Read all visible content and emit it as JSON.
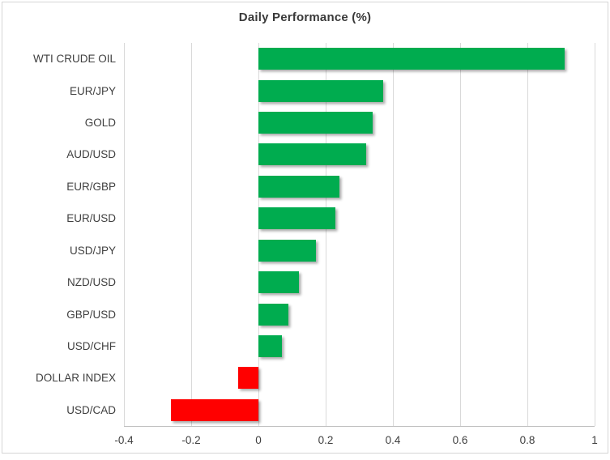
{
  "chart_data": {
    "type": "bar",
    "orientation": "horizontal",
    "title": "Daily Performance (%)",
    "categories": [
      "WTI CRUDE OIL",
      "EUR/JPY",
      "GOLD",
      "AUD/USD",
      "EUR/GBP",
      "EUR/USD",
      "USD/JPY",
      "NZD/USD",
      "GBP/USD",
      "USD/CHF",
      "DOLLAR INDEX",
      "USD/CAD"
    ],
    "values": [
      0.91,
      0.37,
      0.34,
      0.32,
      0.24,
      0.23,
      0.17,
      0.12,
      0.09,
      0.07,
      -0.06,
      -0.26
    ],
    "xlabel": "",
    "ylabel": "",
    "xlim": [
      -0.4,
      1.0
    ],
    "x_ticks": [
      -0.4,
      -0.2,
      0,
      0.2,
      0.4,
      0.6,
      0.8,
      1
    ],
    "x_tick_labels": [
      "-0.4",
      "-0.2",
      "0",
      "0.2",
      "0.4",
      "0.6",
      "0.8",
      "1"
    ],
    "grid": "vertical-on",
    "legend": "none",
    "colors": {
      "positive_bar": "#00ac4f",
      "negative_bar": "#ff0000",
      "gridline": "#d9d9d9",
      "axis_line": "#bfbfbf",
      "text": "#404040",
      "border": "#d6d6d6"
    }
  }
}
